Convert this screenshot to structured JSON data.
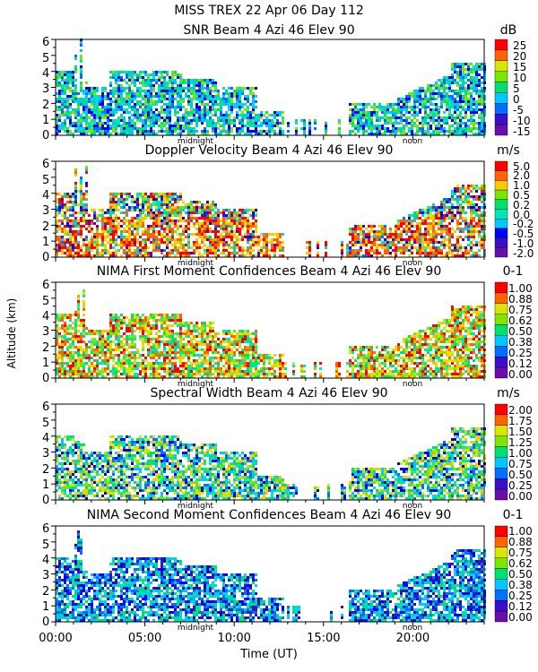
{
  "title": "MISS TREX   22 Apr 06 Day 112",
  "ylabel": "Altitude (km)",
  "xlabel": "Time (UT)",
  "x_tick_labels": [
    "00:00",
    "05:00",
    "10:00",
    "15:00",
    "20:00"
  ],
  "marker_labels": {
    "midnight": "midnight",
    "noon": "noon"
  },
  "colors": {
    "palette": [
      "#6a0dad",
      "#3b0fc8",
      "#0000ff",
      "#0070ff",
      "#00c8ff",
      "#00e6b4",
      "#00e06e",
      "#7ce600",
      "#d8e600",
      "#ffc800",
      "#ff6400",
      "#ff0000"
    ]
  },
  "chart_data": [
    {
      "type": "heatmap",
      "title": "SNR Beam 4 Azi  46 Elev 90",
      "unit": "dB",
      "x_range_hours": [
        0,
        24
      ],
      "y_range_km": [
        0,
        6
      ],
      "y_ticks": [
        "0",
        "1",
        "2",
        "3",
        "4",
        "5",
        "6"
      ],
      "colorbar_labels": [
        "25",
        "20",
        "15",
        "10",
        "5",
        "0",
        "-5",
        "-10",
        "-15"
      ]
    },
    {
      "type": "heatmap",
      "title": "Doppler Velocity Beam 4 Azi  46 Elev 90",
      "unit": "m/s",
      "x_range_hours": [
        0,
        24
      ],
      "y_range_km": [
        0,
        6
      ],
      "y_ticks": [
        "0",
        "1",
        "2",
        "3",
        "4",
        "5",
        "6"
      ],
      "colorbar_labels": [
        "5.0",
        "2.0",
        "1.0",
        "0.5",
        "0.2",
        "0.0",
        "-0.2",
        "-0.5",
        "-1.0",
        "-2.0"
      ]
    },
    {
      "type": "heatmap",
      "title": "NIMA First Moment Confidences Beam 4 Azi  46 Elev 90",
      "unit": "0-1",
      "x_range_hours": [
        0,
        24
      ],
      "y_range_km": [
        0,
        6
      ],
      "y_ticks": [
        "0",
        "1",
        "2",
        "3",
        "4",
        "5",
        "6"
      ],
      "colorbar_labels": [
        "1.00",
        "0.88",
        "0.75",
        "0.62",
        "0.50",
        "0.38",
        "0.25",
        "0.12",
        "0.00"
      ]
    },
    {
      "type": "heatmap",
      "title": "Spectral Width Beam 4 Azi  46 Elev 90",
      "unit": "m/s",
      "x_range_hours": [
        0,
        24
      ],
      "y_range_km": [
        0,
        6
      ],
      "y_ticks": [
        "0",
        "1",
        "2",
        "3",
        "4",
        "5",
        "6"
      ],
      "colorbar_labels": [
        "2.00",
        "1.75",
        "1.50",
        "1.25",
        "1.00",
        "0.75",
        "0.50",
        "0.25",
        "0.00"
      ]
    },
    {
      "type": "heatmap",
      "title": "NIMA Second Moment Confidences Beam 4 Azi  46 Elev 90",
      "unit": "0-1",
      "x_range_hours": [
        0,
        24
      ],
      "y_range_km": [
        0,
        6
      ],
      "y_ticks": [
        "0",
        "1",
        "2",
        "3",
        "4",
        "5",
        "6"
      ],
      "colorbar_labels": [
        "1.00",
        "0.88",
        "0.75",
        "0.62",
        "0.50",
        "0.38",
        "0.25",
        "0.12",
        "0.00"
      ]
    }
  ]
}
